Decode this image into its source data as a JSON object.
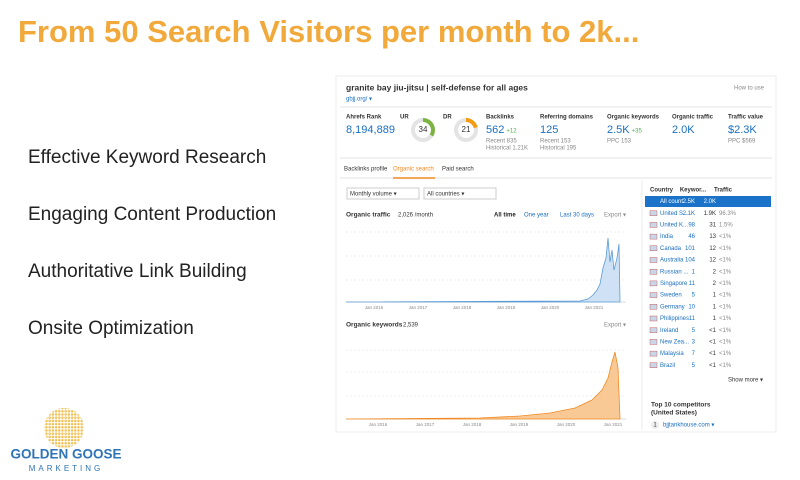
{
  "headline": "From 50 Search Visitors per month to 2k...",
  "bullets": [
    "Effective Keyword Research",
    "Engaging Content Production",
    "Authoritative Link Building",
    "Onsite Optimization"
  ],
  "logo": {
    "name": "GOLDEN GOOSE",
    "tagline": "MARKETING"
  },
  "screenshot": {
    "site_title": "granite bay jiu-jitsu | self-defense for all ages",
    "url": "gbjj.org/ ▾",
    "help": "How to use",
    "metrics": [
      {
        "label": "Ahrefs Rank",
        "value": "8,194,889"
      },
      {
        "label": "UR",
        "value": 34
      },
      {
        "label": "DR",
        "value": 21
      },
      {
        "label": "Backlinks",
        "value": "562",
        "delta": "+12",
        "sub": [
          "Recent 835",
          "Historical 1.21K"
        ]
      },
      {
        "label": "Referring domains",
        "value": "125",
        "sub": [
          "Recent 153",
          "Historical 195"
        ]
      },
      {
        "label": "Organic keywords",
        "value": "2.5K",
        "delta": "+35",
        "sub": [
          "PPC 153"
        ]
      },
      {
        "label": "Organic traffic",
        "value": "2.0K"
      },
      {
        "label": "Traffic value",
        "value": "$2.3K",
        "sub": [
          "PPC $569"
        ]
      }
    ],
    "tabs": [
      "Backlinks profile",
      "Organic search",
      "Paid search"
    ],
    "filters": [
      "Monthly volume ▾",
      "All countries ▾"
    ],
    "traffic": {
      "label": "Organic traffic",
      "value": "2,026 /month",
      "ranges": [
        "All time",
        "One year",
        "Last 30 days"
      ],
      "export": "Export ▾"
    },
    "keywords": {
      "label": "Organic keywords",
      "value": "2,539",
      "export": "Export ▾"
    },
    "x_labels": [
      "Jan 2016",
      "Jan 2017",
      "Jan 2018",
      "Jan 2019",
      "Jan 2020",
      "Jan 2021"
    ],
    "country_table": {
      "headers": [
        "Country",
        "Keywor...",
        "Traffic"
      ],
      "rows": [
        [
          "All count",
          "2.5K",
          "2.0K",
          ""
        ],
        [
          "United S...",
          "2.1K",
          "1.9K",
          "96.3%"
        ],
        [
          "United K...",
          "98",
          "31",
          "1.5%"
        ],
        [
          "India",
          "46",
          "13",
          "<1%"
        ],
        [
          "Canada",
          "101",
          "12",
          "<1%"
        ],
        [
          "Australia",
          "104",
          "12",
          "<1%"
        ],
        [
          "Russian ...",
          "1",
          "2",
          "<1%"
        ],
        [
          "Singapore",
          "11",
          "2",
          "<1%"
        ],
        [
          "Sweden",
          "5",
          "1",
          "<1%"
        ],
        [
          "Germany",
          "10",
          "1",
          "<1%"
        ],
        [
          "Philippines",
          "11",
          "1",
          "<1%"
        ],
        [
          "Ireland",
          "5",
          "<1",
          "<1%"
        ],
        [
          "New Zea...",
          "3",
          "<1",
          "<1%"
        ],
        [
          "Malaysia",
          "7",
          "<1",
          "<1%"
        ],
        [
          "Brazil",
          "5",
          "<1",
          "<1%"
        ]
      ],
      "show_more": "Show more ▾"
    },
    "competitors": {
      "title": "Top 10 competitors",
      "subtitle": "(United States)",
      "rank": "1",
      "domain": "bjjtankhouse.com ▾"
    }
  }
}
